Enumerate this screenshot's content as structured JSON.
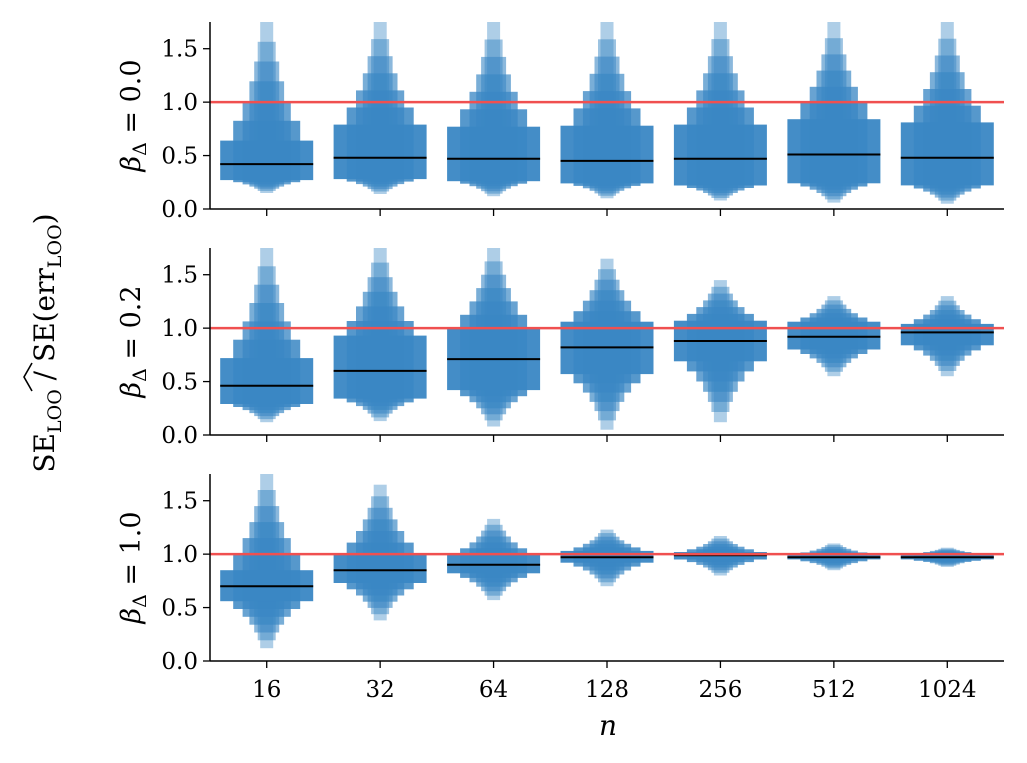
{
  "chart_data": {
    "type": "letter-value",
    "x_label": "n",
    "y_label": "SÊ LOO / SE(err LOO)",
    "y_label_main": "SE",
    "y_label_sub1": "LOO",
    "y_label_sep": " / SE(err",
    "y_label_sub2": "LOO",
    "y_label_close": ")",
    "categories": [
      "16",
      "32",
      "64",
      "128",
      "256",
      "512",
      "1024"
    ],
    "ylim": [
      0.0,
      1.75
    ],
    "y_ticks": [
      "0.0",
      "0.5",
      "1.0",
      "1.5"
    ],
    "y_tick_values": [
      0.0,
      0.5,
      1.0,
      1.5
    ],
    "reference_line": 1.0,
    "colors": {
      "box": "#3a87c4",
      "median": "#000000",
      "reference": "#f05050"
    },
    "panels": [
      {
        "label": "βΔ = 0.0",
        "label_main": "β",
        "label_sub": "Δ",
        "label_rest": " = 0.0",
        "medians": [
          0.42,
          0.48,
          0.47,
          0.45,
          0.47,
          0.51,
          0.48
        ],
        "lower": [
          0.15,
          0.14,
          0.12,
          0.1,
          0.08,
          0.06,
          0.05
        ],
        "upper": [
          1.75,
          1.75,
          1.75,
          1.75,
          1.75,
          1.75,
          1.75
        ],
        "q1": [
          0.27,
          0.28,
          0.26,
          0.24,
          0.22,
          0.24,
          0.22
        ],
        "q3": [
          0.64,
          0.79,
          0.77,
          0.78,
          0.79,
          0.84,
          0.81
        ]
      },
      {
        "label": "βΔ = 0.2",
        "label_main": "β",
        "label_sub": "Δ",
        "label_rest": " = 0.2",
        "medians": [
          0.46,
          0.6,
          0.71,
          0.82,
          0.88,
          0.92,
          0.96
        ],
        "lower": [
          0.12,
          0.13,
          0.08,
          0.05,
          0.12,
          0.55,
          0.55
        ],
        "upper": [
          1.75,
          1.75,
          1.75,
          1.65,
          1.45,
          1.3,
          1.3
        ],
        "q1": [
          0.29,
          0.34,
          0.42,
          0.57,
          0.69,
          0.8,
          0.84
        ],
        "q3": [
          0.72,
          0.93,
          1.0,
          1.06,
          1.07,
          1.06,
          1.04
        ]
      },
      {
        "label": "βΔ = 1.0",
        "label_main": "β",
        "label_sub": "Δ",
        "label_rest": " = 1.0",
        "medians": [
          0.7,
          0.85,
          0.9,
          0.97,
          0.99,
          0.97,
          0.97
        ],
        "lower": [
          0.12,
          0.38,
          0.57,
          0.7,
          0.8,
          0.85,
          0.88
        ],
        "upper": [
          1.75,
          1.65,
          1.33,
          1.23,
          1.17,
          1.1,
          1.06
        ],
        "q1": [
          0.56,
          0.73,
          0.82,
          0.92,
          0.95,
          0.95,
          0.95
        ],
        "q3": [
          0.85,
          1.0,
          1.0,
          1.03,
          1.02,
          1.0,
          1.0
        ]
      }
    ]
  }
}
